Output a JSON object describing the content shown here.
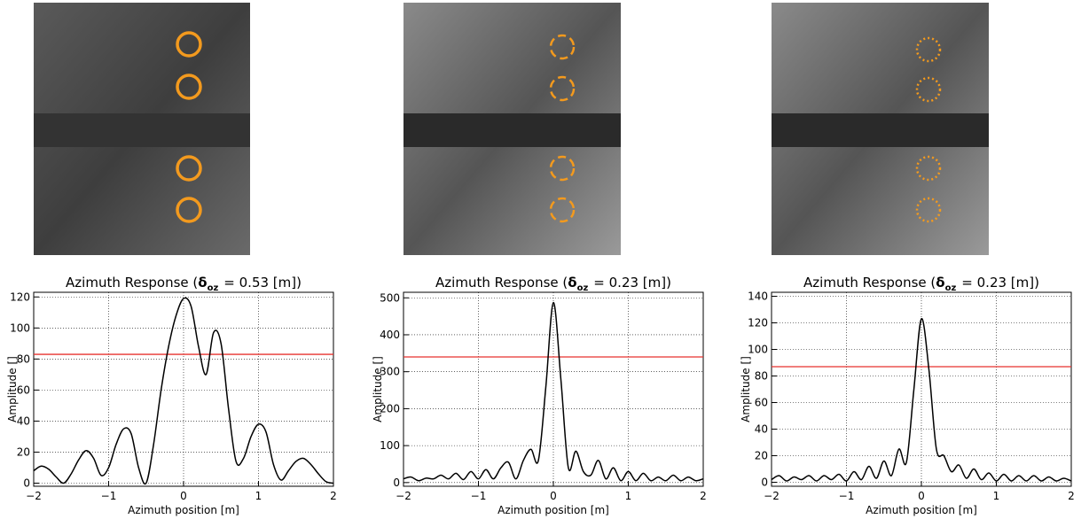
{
  "chart_data": [
    {
      "type": "line",
      "title": "Azimuth Response (",
      "title_symbol": "δ",
      "title_subscript": "oz",
      "title_end": "= 0.53 [m])",
      "xlabel": "Azimuth position [m]",
      "ylabel": "Amplitude []",
      "x": [
        -2,
        -1.9,
        -1.8,
        -1.7,
        -1.6,
        -1.5,
        -1.4,
        -1.3,
        -1.2,
        -1.1,
        -1,
        -0.9,
        -0.8,
        -0.7,
        -0.6,
        -0.5,
        -0.4,
        -0.3,
        -0.2,
        -0.1,
        0,
        0.1,
        0.2,
        0.3,
        0.4,
        0.5,
        0.6,
        0.7,
        0.8,
        0.9,
        1,
        1.1,
        1.2,
        1.3,
        1.4,
        1.5,
        1.6,
        1.7,
        1.8,
        1.9,
        2
      ],
      "values": [
        8,
        11,
        9,
        4,
        0,
        6,
        15,
        21,
        16,
        5,
        10,
        25,
        35,
        32,
        10,
        0,
        25,
        60,
        88,
        108,
        119,
        114,
        88,
        70,
        97,
        90,
        48,
        14,
        16,
        30,
        38,
        33,
        12,
        2,
        8,
        14,
        16,
        12,
        6,
        1,
        0
      ],
      "color": "#000000",
      "hline": {
        "value": 83,
        "color": "#e8322e"
      },
      "xlim": [
        -2,
        2
      ],
      "xticks": [
        {
          "value": -2,
          "label": "−2"
        },
        {
          "value": -1,
          "label": "−1"
        },
        0,
        1,
        2
      ],
      "ylim": [
        -2,
        123
      ],
      "yticks": [
        0,
        20,
        40,
        60,
        80,
        100,
        120
      ],
      "grid": true
    },
    {
      "type": "line",
      "title": "Azimuth Response (",
      "title_symbol": "δ",
      "title_subscript": "oz",
      "title_end": "= 0.23 [m])",
      "xlabel": "Azimuth position [m]",
      "ylabel": "Amplitude []",
      "x": [
        -2,
        -1.9,
        -1.8,
        -1.7,
        -1.6,
        -1.5,
        -1.4,
        -1.3,
        -1.2,
        -1.1,
        -1,
        -0.9,
        -0.8,
        -0.7,
        -0.6,
        -0.5,
        -0.4,
        -0.3,
        -0.2,
        -0.1,
        0,
        0.1,
        0.2,
        0.3,
        0.4,
        0.5,
        0.6,
        0.7,
        0.8,
        0.9,
        1,
        1.1,
        1.2,
        1.3,
        1.4,
        1.5,
        1.6,
        1.7,
        1.8,
        1.9,
        2
      ],
      "values": [
        10,
        15,
        5,
        12,
        10,
        20,
        10,
        25,
        8,
        30,
        10,
        35,
        10,
        40,
        55,
        10,
        60,
        90,
        60,
        260,
        487,
        280,
        40,
        85,
        30,
        20,
        60,
        10,
        40,
        5,
        30,
        5,
        25,
        5,
        15,
        5,
        20,
        5,
        15,
        5,
        10
      ],
      "color": "#000000",
      "hline": {
        "value": 340,
        "color": "#e8322e"
      },
      "xlim": [
        -2,
        2
      ],
      "xticks": [
        {
          "value": -2,
          "label": "−2"
        },
        {
          "value": -1,
          "label": "−1"
        },
        0,
        1,
        2
      ],
      "ylim": [
        -10,
        515
      ],
      "yticks": [
        0,
        100,
        200,
        300,
        400,
        500
      ],
      "grid": true
    },
    {
      "type": "line",
      "title": "Azimuth Response (",
      "title_symbol": "δ",
      "title_subscript": "oz",
      "title_end": "= 0.23 [m])",
      "xlabel": "Azimuth position [m]",
      "ylabel": "Amplitude []",
      "x": [
        -2,
        -1.9,
        -1.8,
        -1.7,
        -1.6,
        -1.5,
        -1.4,
        -1.3,
        -1.2,
        -1.1,
        -1,
        -0.9,
        -0.8,
        -0.7,
        -0.6,
        -0.5,
        -0.4,
        -0.3,
        -0.2,
        -0.1,
        0,
        0.1,
        0.2,
        0.3,
        0.4,
        0.5,
        0.6,
        0.7,
        0.8,
        0.9,
        1,
        1.1,
        1.2,
        1.3,
        1.4,
        1.5,
        1.6,
        1.7,
        1.8,
        1.9,
        2
      ],
      "values": [
        2,
        5,
        1,
        4,
        2,
        5,
        1,
        5,
        2,
        6,
        1,
        8,
        2,
        12,
        3,
        16,
        5,
        25,
        15,
        70,
        123,
        85,
        25,
        20,
        8,
        13,
        3,
        10,
        2,
        7,
        1,
        6,
        1,
        5,
        1,
        5,
        1,
        4,
        1,
        3,
        1
      ],
      "color": "#000000",
      "hline": {
        "value": 87,
        "color": "#e8322e"
      },
      "xlim": [
        -2,
        2
      ],
      "xticks": [
        {
          "value": -2,
          "label": "−2"
        },
        {
          "value": -1,
          "label": "−1"
        },
        0,
        1,
        2
      ],
      "ylim": [
        -3,
        143
      ],
      "yticks": [
        0,
        20,
        40,
        60,
        80,
        100,
        120,
        140
      ],
      "grid": true
    }
  ]
}
